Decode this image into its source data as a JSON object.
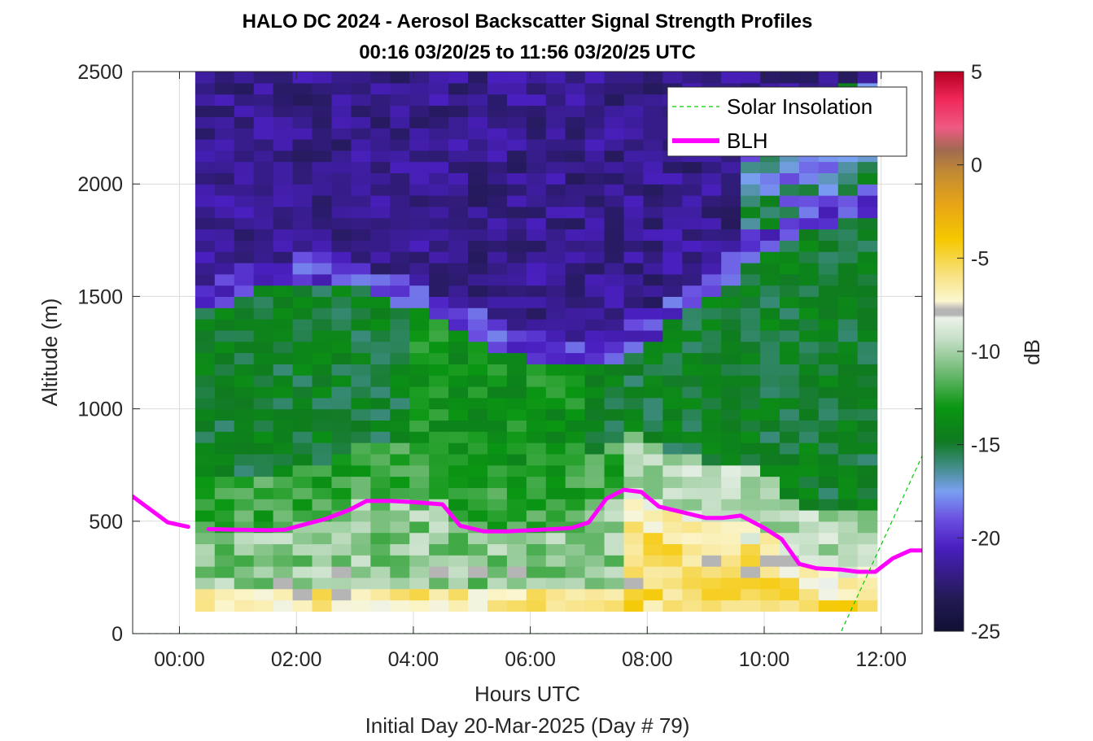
{
  "title_line1": "HALO DC 2024 - Aerosol Backscatter Signal Strength Profiles",
  "title_line2": "00:16 03/20/25 to 11:56 03/20/25  UTC",
  "xlabel": "Hours UTC",
  "xlabel2": "Initial Day 20-Mar-2025 (Day # 79)",
  "ylabel": "Altitude (m)",
  "legend": {
    "solar_label": "Solar Insolation",
    "blh_label": "BLH"
  },
  "colorbar": {
    "label": "dB",
    "ticks": [
      "5",
      "0",
      "-5",
      "-10",
      "-15",
      "-20",
      "-25"
    ],
    "range": [
      -25,
      5
    ]
  },
  "colors": {
    "blh": "#ff00ff",
    "solar": "#00cc00"
  },
  "chart_data": {
    "type": "heatmap",
    "xlim": [
      -0.8,
      12.7
    ],
    "ylim": [
      0,
      2500
    ],
    "x_ticks": [
      "00:00",
      "02:00",
      "04:00",
      "06:00",
      "08:00",
      "10:00",
      "12:00"
    ],
    "x_tick_values": [
      0,
      2,
      4,
      6,
      8,
      10,
      12
    ],
    "y_ticks": [
      "0",
      "500",
      "1000",
      "1500",
      "2000",
      "2500"
    ],
    "y_tick_values": [
      0,
      500,
      1000,
      1500,
      2000,
      2500
    ],
    "heatmap_x_range": [
      0.27,
      11.93
    ],
    "heatmap_y_range": [
      100,
      2500
    ],
    "grid": true,
    "legend_position": "top-right",
    "series": [
      {
        "name": "BLH",
        "x": [
          -0.8,
          -0.2,
          0.15
        ],
        "y": [
          610,
          495,
          475
        ]
      },
      {
        "name": "BLH",
        "x": [
          0.5,
          1.0,
          1.5,
          1.8,
          2.2,
          2.5,
          2.9,
          3.2,
          3.6,
          4.0,
          4.5,
          4.8,
          5.2,
          5.6,
          6.0,
          6.4,
          6.7,
          7.0,
          7.3,
          7.6,
          7.9,
          8.2,
          8.6,
          9.0,
          9.3,
          9.6,
          10.0,
          10.3,
          10.6,
          10.9,
          11.3,
          11.6,
          11.9,
          12.2,
          12.5,
          12.7
        ],
        "y": [
          465,
          462,
          460,
          462,
          490,
          510,
          550,
          590,
          590,
          585,
          575,
          480,
          455,
          455,
          460,
          465,
          470,
          495,
          600,
          640,
          630,
          565,
          540,
          515,
          515,
          525,
          470,
          420,
          310,
          290,
          285,
          275,
          275,
          335,
          370,
          370
        ]
      },
      {
        "name": "Solar Insolation",
        "x": [
          -0.8,
          11.3,
          12.7
        ],
        "y": [
          0,
          0,
          790
        ]
      }
    ]
  }
}
